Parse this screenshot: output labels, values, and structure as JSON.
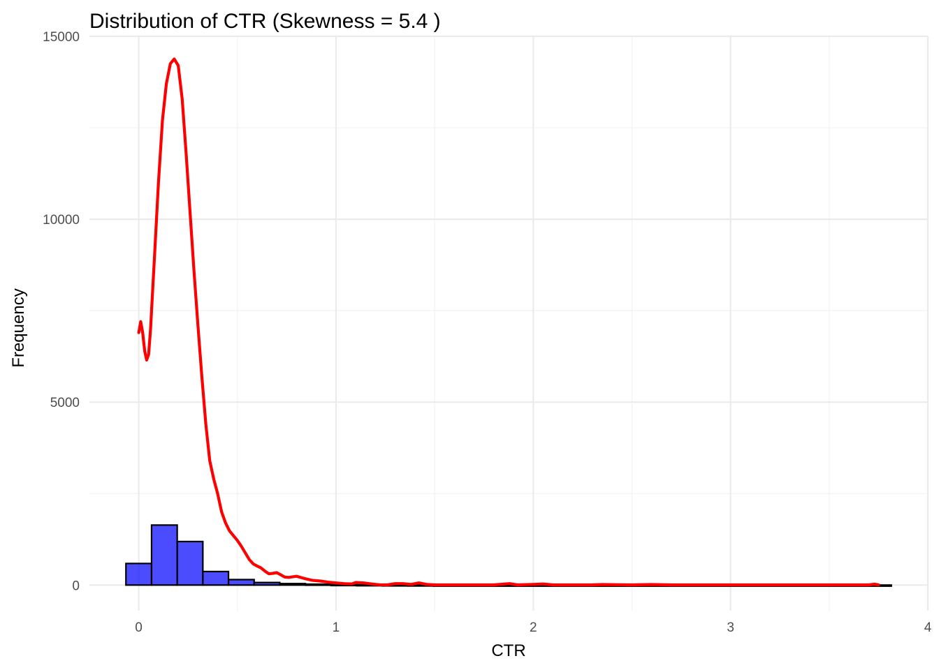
{
  "chart_data": {
    "type": "bar",
    "title": "Distribution of CTR (Skewness = 5.4 )",
    "xlabel": "CTR",
    "ylabel": "Frequency",
    "xlim": [
      -0.25,
      4
    ],
    "ylim": [
      -700,
      15000
    ],
    "x_ticks": [
      0,
      1,
      2,
      3,
      4
    ],
    "y_ticks": [
      0,
      5000,
      10000,
      15000
    ],
    "x_tick_labels": [
      "0",
      "1",
      "2",
      "3",
      "4"
    ],
    "y_tick_labels": [
      "0",
      "5000",
      "10000",
      "15000"
    ],
    "grid": true,
    "histogram": {
      "bin_width": 0.13,
      "bins": [
        {
          "x0": -0.065,
          "x1": 0.065,
          "count": 590
        },
        {
          "x0": 0.065,
          "x1": 0.195,
          "count": 1640
        },
        {
          "x0": 0.195,
          "x1": 0.325,
          "count": 1190
        },
        {
          "x0": 0.325,
          "x1": 0.455,
          "count": 370
        },
        {
          "x0": 0.455,
          "x1": 0.585,
          "count": 150
        },
        {
          "x0": 0.585,
          "x1": 0.715,
          "count": 70
        },
        {
          "x0": 0.715,
          "x1": 0.845,
          "count": 40
        },
        {
          "x0": 0.845,
          "x1": 0.975,
          "count": 25
        },
        {
          "x0": 0.975,
          "x1": 1.105,
          "count": 15
        },
        {
          "x0": 1.105,
          "x1": 1.235,
          "count": 10
        },
        {
          "x0": 1.235,
          "x1": 1.365,
          "count": 6
        },
        {
          "x0": 1.365,
          "x1": 1.495,
          "count": 4
        },
        {
          "x0": 1.495,
          "x1": 3.815,
          "count": 0
        }
      ],
      "fill": "#0000ff",
      "fill_opacity": 0.7,
      "stroke": "#000000"
    },
    "density_curve": {
      "color": "#ff0000",
      "points": [
        [
          0.0,
          6900
        ],
        [
          0.01,
          7200
        ],
        [
          0.02,
          6900
        ],
        [
          0.03,
          6400
        ],
        [
          0.04,
          6150
        ],
        [
          0.05,
          6300
        ],
        [
          0.06,
          7000
        ],
        [
          0.08,
          9000
        ],
        [
          0.1,
          11000
        ],
        [
          0.12,
          12700
        ],
        [
          0.14,
          13700
        ],
        [
          0.16,
          14250
        ],
        [
          0.18,
          14380
        ],
        [
          0.2,
          14200
        ],
        [
          0.22,
          13300
        ],
        [
          0.24,
          11800
        ],
        [
          0.26,
          10200
        ],
        [
          0.28,
          8600
        ],
        [
          0.3,
          7100
        ],
        [
          0.32,
          5700
        ],
        [
          0.34,
          4400
        ],
        [
          0.36,
          3400
        ],
        [
          0.38,
          2900
        ],
        [
          0.4,
          2500
        ],
        [
          0.42,
          2000
        ],
        [
          0.44,
          1700
        ],
        [
          0.46,
          1480
        ],
        [
          0.48,
          1350
        ],
        [
          0.5,
          1220
        ],
        [
          0.52,
          1060
        ],
        [
          0.54,
          880
        ],
        [
          0.56,
          700
        ],
        [
          0.58,
          580
        ],
        [
          0.6,
          520
        ],
        [
          0.62,
          470
        ],
        [
          0.64,
          380
        ],
        [
          0.66,
          310
        ],
        [
          0.68,
          320
        ],
        [
          0.7,
          340
        ],
        [
          0.72,
          280
        ],
        [
          0.74,
          220
        ],
        [
          0.76,
          210
        ],
        [
          0.8,
          240
        ],
        [
          0.84,
          180
        ],
        [
          0.88,
          130
        ],
        [
          0.92,
          110
        ],
        [
          0.96,
          80
        ],
        [
          1.0,
          60
        ],
        [
          1.04,
          40
        ],
        [
          1.08,
          30
        ],
        [
          1.1,
          70
        ],
        [
          1.14,
          60
        ],
        [
          1.18,
          30
        ],
        [
          1.22,
          10
        ],
        [
          1.26,
          5
        ],
        [
          1.3,
          40
        ],
        [
          1.34,
          40
        ],
        [
          1.38,
          20
        ],
        [
          1.42,
          60
        ],
        [
          1.46,
          20
        ],
        [
          1.5,
          5
        ],
        [
          1.6,
          5
        ],
        [
          1.7,
          5
        ],
        [
          1.8,
          5
        ],
        [
          1.88,
          40
        ],
        [
          1.92,
          5
        ],
        [
          2.0,
          20
        ],
        [
          2.05,
          30
        ],
        [
          2.1,
          5
        ],
        [
          2.3,
          5
        ],
        [
          2.35,
          15
        ],
        [
          2.5,
          5
        ],
        [
          2.6,
          15
        ],
        [
          2.7,
          5
        ],
        [
          3.0,
          5
        ],
        [
          3.5,
          5
        ],
        [
          3.7,
          5
        ],
        [
          3.73,
          25
        ],
        [
          3.75,
          5
        ]
      ]
    }
  }
}
